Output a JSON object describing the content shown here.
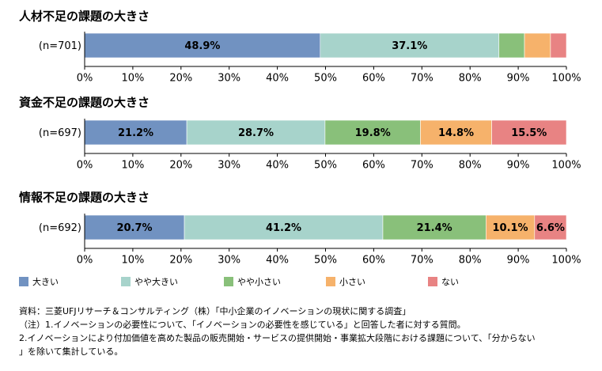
{
  "chart_data": {
    "type": "bar",
    "orientation": "horizontal-stacked-100",
    "legend": {
      "placement": "bottom",
      "items": [
        {
          "name": "大きい",
          "color": "#7192c1"
        },
        {
          "name": "やや大きい",
          "color": "#a7d3cb"
        },
        {
          "name": "やや小さい",
          "color": "#89c07a"
        },
        {
          "name": "小さい",
          "color": "#f6b26b"
        },
        {
          "name": "ない",
          "color": "#e88383"
        }
      ]
    },
    "xlim": [
      0,
      100
    ],
    "x_ticks": [
      "0%",
      "10%",
      "20%",
      "30%",
      "40%",
      "50%",
      "60%",
      "70%",
      "80%",
      "90%",
      "100%"
    ],
    "charts": [
      {
        "title": "人材不足の課題の大きさ",
        "category": "(n=701)",
        "values": [
          48.9,
          37.1,
          5.3,
          5.4,
          3.3
        ],
        "labels": [
          "48.9%",
          "37.1%",
          "",
          "",
          ""
        ]
      },
      {
        "title": "資金不足の課題の大きさ",
        "category": "(n=697)",
        "values": [
          21.2,
          28.7,
          19.8,
          14.8,
          15.5
        ],
        "labels": [
          "21.2%",
          "28.7%",
          "19.8%",
          "14.8%",
          "15.5%"
        ]
      },
      {
        "title": "情報不足の課題の大きさ",
        "category": "(n=692)",
        "values": [
          20.7,
          41.2,
          21.4,
          10.1,
          6.6
        ],
        "labels": [
          "20.7%",
          "41.2%",
          "21.4%",
          "10.1%",
          "6.6%"
        ]
      }
    ]
  },
  "notes": {
    "source": "資料：三菱UFJリサーチ＆コンサルティング（株）「中小企業のイノベーションの現状に関する調査」",
    "note1": "（注）1.イノベーションの必要性について、「イノベーションの必要性を感じている」と回答した者に対する質問。",
    "note2": "2.イノベーションにより付加価値を高めた製品の販売開始・サービスの提供開始・事業拡大段階における課題について、「分からない",
    "note3": "」を除いて集計している。"
  }
}
